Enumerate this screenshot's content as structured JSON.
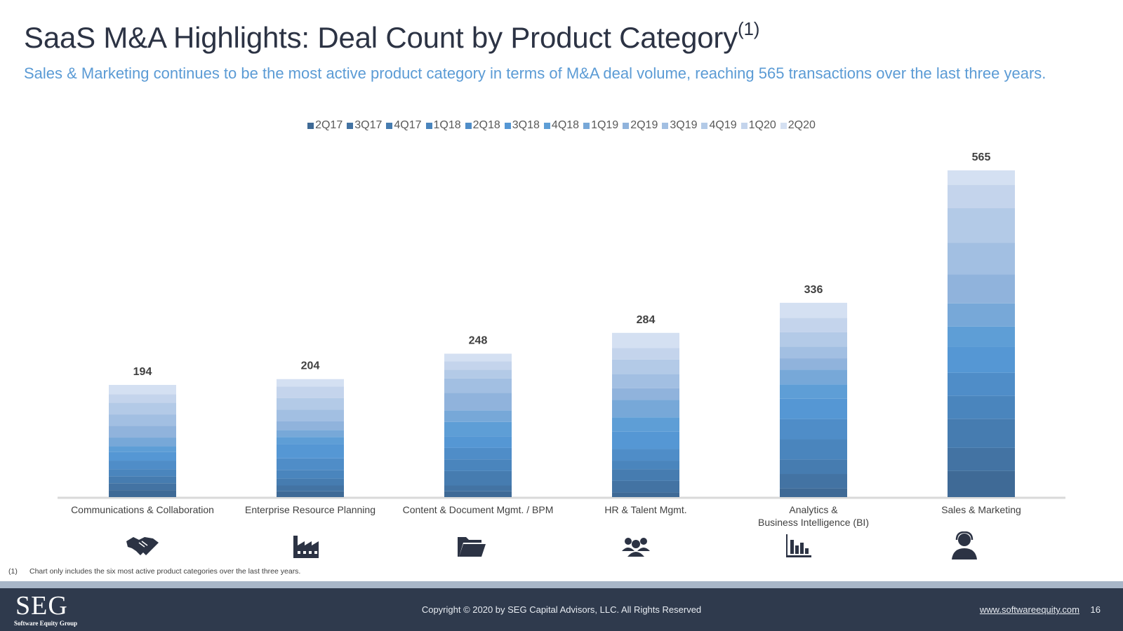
{
  "slide": {
    "title": "SaaS M&A Highlights: Deal Count by Product Category",
    "title_superscript": "(1)",
    "subtitle": "Sales & Marketing continues to be the most active product category in terms of M&A deal volume, reaching 565 transactions over the last three years.",
    "footnote_number": "(1)",
    "footnote_text": "Chart only includes the six most active product categories over the last three years."
  },
  "footer": {
    "logo_text": "SEG",
    "logo_subtext": "Software Equity Group",
    "copyright": "Copyright © 2020 by SEG Capital Advisors, LLC. All Rights Reserved",
    "website": "www.softwareequity.com",
    "page_number": "16"
  },
  "icons": [
    "handshake-icon",
    "factory-icon",
    "folder-icon",
    "people-group-icon",
    "bar-chart-icon",
    "headset-person-icon"
  ],
  "chart_data": {
    "type": "bar",
    "stacked": true,
    "categories": [
      "Communications & Collaboration",
      "Enterprise Resource Planning",
      "Content & Document Mgmt. / BPM",
      "HR & Talent Mgmt.",
      "Analytics &\nBusiness Intelligence (BI)",
      "Sales & Marketing"
    ],
    "totals": [
      194,
      204,
      248,
      284,
      336,
      565
    ],
    "series": [
      {
        "name": "2Q17",
        "color": "#3f6a96",
        "values": [
          12,
          10,
          10,
          8,
          15,
          45
        ]
      },
      {
        "name": "3Q17",
        "color": "#4373a3",
        "values": [
          12,
          10,
          10,
          20,
          25,
          40
        ]
      },
      {
        "name": "4Q17",
        "color": "#467cb0",
        "values": [
          12,
          12,
          25,
          20,
          25,
          50
        ]
      },
      {
        "name": "1Q18",
        "color": "#4a85bd",
        "values": [
          12,
          15,
          20,
          15,
          35,
          40
        ]
      },
      {
        "name": "2Q18",
        "color": "#4f8dc8",
        "values": [
          15,
          20,
          20,
          20,
          35,
          40
        ]
      },
      {
        "name": "3Q18",
        "color": "#5597d4",
        "values": [
          15,
          25,
          20,
          30,
          35,
          45
        ]
      },
      {
        "name": "4Q18",
        "color": "#5e9ed6",
        "values": [
          10,
          12,
          25,
          25,
          25,
          35
        ]
      },
      {
        "name": "1Q19",
        "color": "#77a8d8",
        "values": [
          15,
          12,
          20,
          30,
          25,
          40
        ]
      },
      {
        "name": "2Q19",
        "color": "#90b3dc",
        "values": [
          20,
          15,
          30,
          20,
          20,
          50
        ]
      },
      {
        "name": "3Q19",
        "color": "#a2bfe2",
        "values": [
          20,
          20,
          25,
          25,
          20,
          55
        ]
      },
      {
        "name": "4Q19",
        "color": "#b3cae7",
        "values": [
          20,
          20,
          15,
          25,
          25,
          60
        ]
      },
      {
        "name": "1Q20",
        "color": "#c4d4ec",
        "values": [
          15,
          20,
          15,
          20,
          25,
          40
        ]
      },
      {
        "name": "2Q20",
        "color": "#d4e0f2",
        "values": [
          16,
          13,
          13,
          26,
          26,
          25
        ]
      }
    ],
    "ylim": [
      0,
      600
    ],
    "xlabel": "",
    "ylabel": "",
    "legend_position": "top-center",
    "grid": false
  }
}
